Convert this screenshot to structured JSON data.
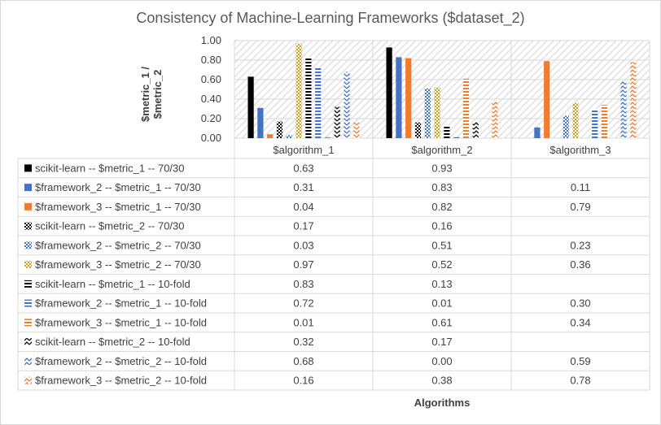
{
  "chart_data": {
    "type": "bar",
    "title": "Consistency of Machine-Learning Frameworks ($dataset_2)",
    "ylabel": "$metric_1 /\n$metric_2",
    "xlabel": "Algorithms",
    "ylim": [
      0,
      1
    ],
    "yticks": [
      "0.00",
      "0.20",
      "0.40",
      "0.60",
      "0.80",
      "1.00"
    ],
    "categories": [
      "$algorithm_1",
      "$algorithm_2",
      "$algorithm_3"
    ],
    "data_table": true,
    "series": [
      {
        "name": "scikit-learn -- $metric_1 -- 70/30",
        "values": [
          0.63,
          0.93,
          null
        ],
        "labels": [
          "0.63",
          "0.93",
          ""
        ],
        "color": "#000000",
        "pattern": "solid"
      },
      {
        "name": "$framework_2 -- $metric_1 -- 70/30",
        "values": [
          0.31,
          0.83,
          0.11
        ],
        "labels": [
          "0.31",
          "0.83",
          "0.11"
        ],
        "color": "#4472c4",
        "pattern": "solid"
      },
      {
        "name": "$framework_3 -- $metric_1 -- 70/30",
        "values": [
          0.04,
          0.82,
          0.79
        ],
        "labels": [
          "0.04",
          "0.82",
          "0.79"
        ],
        "color": "#ed7d31",
        "pattern": "solid"
      },
      {
        "name": "scikit-learn -- $metric_2 -- 70/30",
        "values": [
          0.17,
          0.16,
          null
        ],
        "labels": [
          "0.17",
          "0.16",
          ""
        ],
        "color": "#000000",
        "pattern": "check"
      },
      {
        "name": "$framework_2 -- $metric_2 -- 70/30",
        "values": [
          0.03,
          0.51,
          0.23
        ],
        "labels": [
          "0.03",
          "0.51",
          "0.23"
        ],
        "color": "#4472c4",
        "pattern": "check"
      },
      {
        "name": "$framework_3 -- $metric_2 -- 70/30",
        "values": [
          0.97,
          0.52,
          0.36
        ],
        "labels": [
          "0.97",
          "0.52",
          "0.36"
        ],
        "color": "#c9a227",
        "pattern": "check"
      },
      {
        "name": "scikit-learn -- $metric_1 -- 10-fold",
        "values": [
          0.83,
          0.13,
          null
        ],
        "labels": [
          "0.83",
          "0.13",
          ""
        ],
        "color": "#000000",
        "pattern": "hstripe"
      },
      {
        "name": "$framework_2 -- $metric_1 -- 10-fold",
        "values": [
          0.72,
          0.01,
          0.3
        ],
        "labels": [
          "0.72",
          "0.01",
          "0.30"
        ],
        "color": "#4472c4",
        "pattern": "hstripe"
      },
      {
        "name": "$framework_3 -- $metric_1 -- 10-fold",
        "values": [
          0.01,
          0.61,
          0.34
        ],
        "labels": [
          "0.01",
          "0.61",
          "0.34"
        ],
        "color": "#ed7d31",
        "pattern": "hstripe"
      },
      {
        "name": "scikit-learn -- $metric_2 -- 10-fold",
        "values": [
          0.32,
          0.17,
          null
        ],
        "labels": [
          "0.32",
          "0.17",
          ""
        ],
        "color": "#000000",
        "pattern": "zigzag"
      },
      {
        "name": "$framework_2 -- $metric_2 -- 10-fold",
        "values": [
          0.68,
          0.0,
          0.59
        ],
        "labels": [
          "0.68",
          "0.00",
          "0.59"
        ],
        "color": "#4472c4",
        "pattern": "zigzag"
      },
      {
        "name": "$framework_3 -- $metric_2 -- 10-fold",
        "values": [
          0.16,
          0.38,
          0.78
        ],
        "labels": [
          "0.16",
          "0.38",
          "0.78"
        ],
        "color": "#ed7d31",
        "pattern": "zigzag"
      }
    ]
  }
}
